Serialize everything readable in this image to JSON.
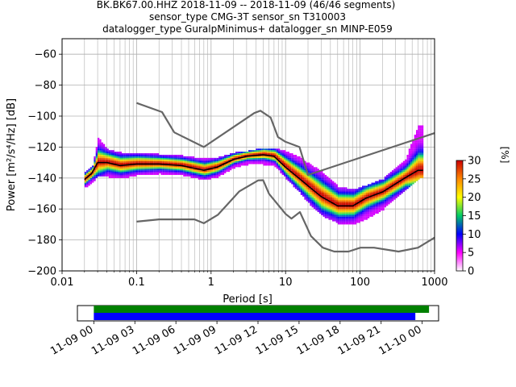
{
  "title_lines": [
    "BK.BK67.00.HHZ   2018-11-09 -- 2018-11-09  (46/46 segments)",
    "sensor_type CMG-3T sensor_sn T310003",
    "datalogger_type GuralpMinimus+ datalogger_sn MINP-E059"
  ],
  "chart_data": {
    "type": "heatmap",
    "title": "BK.BK67.00.HHZ   2018-11-09 -- 2018-11-09  (46/46 segments)",
    "xlabel": "Period [s]",
    "ylabel": "Power [m²/s⁴/Hz] [dB]",
    "x_scale": "log",
    "xlim": [
      0.01,
      1000
    ],
    "ylim": [
      -200,
      -50
    ],
    "x_ticks": [
      0.01,
      0.1,
      1,
      10,
      100,
      1000
    ],
    "x_tick_labels": [
      "0.01",
      "0.1",
      "1",
      "10",
      "100",
      "1000"
    ],
    "y_ticks": [
      -200,
      -180,
      -160,
      -140,
      -120,
      -100,
      -80,
      -60
    ],
    "y_tick_labels": [
      "−200",
      "−180",
      "−160",
      "−140",
      "−120",
      "−100",
      "−80",
      "−60"
    ],
    "grid": true,
    "colorbar": {
      "label": "[%]",
      "range": [
        0,
        30
      ],
      "ticks": [
        0,
        5,
        10,
        15,
        20,
        25,
        30
      ],
      "tick_labels": [
        "0",
        "5",
        "10",
        "15",
        "20",
        "25",
        "30"
      ],
      "colors": [
        "#ffffff",
        "#ff00ff",
        "#0000ff",
        "#00cc66",
        "#ffff00",
        "#ff8800",
        "#cc0000"
      ]
    },
    "series": [
      {
        "name": "",
        "color": "#666666",
        "x": [
          0.1,
          0.22,
          0.32,
          0.8,
          3.8,
          4.6,
          6.3,
          7.9,
          10,
          15.4,
          20,
          1000
        ],
        "y": [
          -91.5,
          -97.4,
          -110.5,
          -120.0,
          -98.0,
          -96.5,
          -101.0,
          -113.5,
          -116.6,
          -120,
          -138,
          -111
        ]
      },
      {
        "name": "",
        "color": "#666666",
        "x": [
          0.1,
          0.2,
          0.6,
          0.8,
          1.24,
          2.4,
          4.3,
          5,
          6,
          10,
          12,
          15.6,
          21.9,
          31.6,
          45,
          70,
          101,
          154,
          328,
          600,
          1000
        ],
        "y": [
          -168.2,
          -166.7,
          -166.7,
          -169.2,
          -163.7,
          -148.6,
          -141.5,
          -141.4,
          -150.2,
          -163.2,
          -166.2,
          -162,
          -177.5,
          -185,
          -187.5,
          -187.5,
          -185,
          -185,
          -187.5,
          -185,
          -178.5
        ]
      },
      {
        "name": "",
        "color": "#000000",
        "x": [
          0.02,
          0.025,
          0.03,
          0.04,
          0.06,
          0.1,
          0.2,
          0.4,
          0.8,
          1.2,
          2,
          3,
          5,
          7,
          10,
          15,
          20,
          30,
          50,
          80,
          120,
          200,
          400,
          600,
          700
        ],
        "y": [
          -141,
          -137,
          -130,
          -130,
          -132,
          -131,
          -131,
          -132,
          -135,
          -133,
          -128,
          -126,
          -125,
          -126,
          -133,
          -140,
          -145,
          -152,
          -158,
          -158,
          -153,
          -149,
          -140,
          -135,
          -135
        ]
      }
    ],
    "density_band": {
      "x": [
        0.02,
        0.025,
        0.03,
        0.04,
        0.06,
        0.1,
        0.2,
        0.4,
        0.8,
        1.2,
        2,
        3,
        5,
        7,
        10,
        15,
        20,
        30,
        50,
        80,
        120,
        200,
        400,
        600,
        700
      ],
      "y_low": [
        -146,
        -143,
        -138,
        -139,
        -140,
        -138,
        -137,
        -138,
        -141,
        -139,
        -133,
        -131,
        -131,
        -132,
        -140,
        -149,
        -156,
        -164,
        -169,
        -170,
        -166,
        -160,
        -147,
        -140,
        -139
      ],
      "y_high": [
        -136,
        -133,
        -114,
        -122,
        -124,
        -124,
        -125,
        -126,
        -128,
        -127,
        -124,
        -123,
        -121,
        -121,
        -123,
        -127,
        -131,
        -136,
        -146,
        -148,
        -145,
        -141,
        -128,
        -106,
        -106
      ]
    },
    "time_axis": {
      "tick_labels": [
        "11-09 00",
        "11-09 03",
        "11-09 06",
        "11-09 09",
        "11-09 12",
        "11-09 15",
        "11-09 18",
        "11-09 21",
        "11-10 00"
      ],
      "tick_hours": [
        0,
        3,
        6,
        9,
        12,
        15,
        18,
        21,
        24
      ],
      "start_hour": -1.2,
      "end_hour": 25.2,
      "bars": [
        {
          "color": "#008000",
          "from_hour": 0,
          "to_hour": 24.5
        },
        {
          "color": "#0000ff",
          "from_hour": 0,
          "to_hour": 23.5
        }
      ]
    }
  }
}
